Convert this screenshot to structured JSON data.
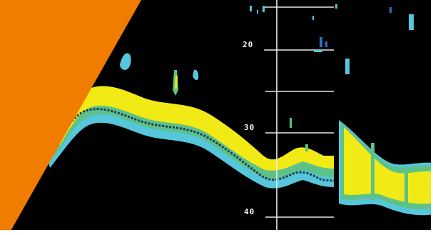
{
  "colors": {
    "background": "#000000",
    "accent_wedge": "#F07D00",
    "page_border": "#FFFFFF",
    "echo_strong": "#F2EA14",
    "echo_medium": "#5CC28A",
    "echo_weak": "#56C6DA",
    "grid_line": "#E8E8E8"
  },
  "depth_scale": {
    "labels": [
      "20",
      "30",
      "40"
    ]
  },
  "display": {
    "type": "sonar-echogram",
    "cursor_line": "vertical"
  }
}
